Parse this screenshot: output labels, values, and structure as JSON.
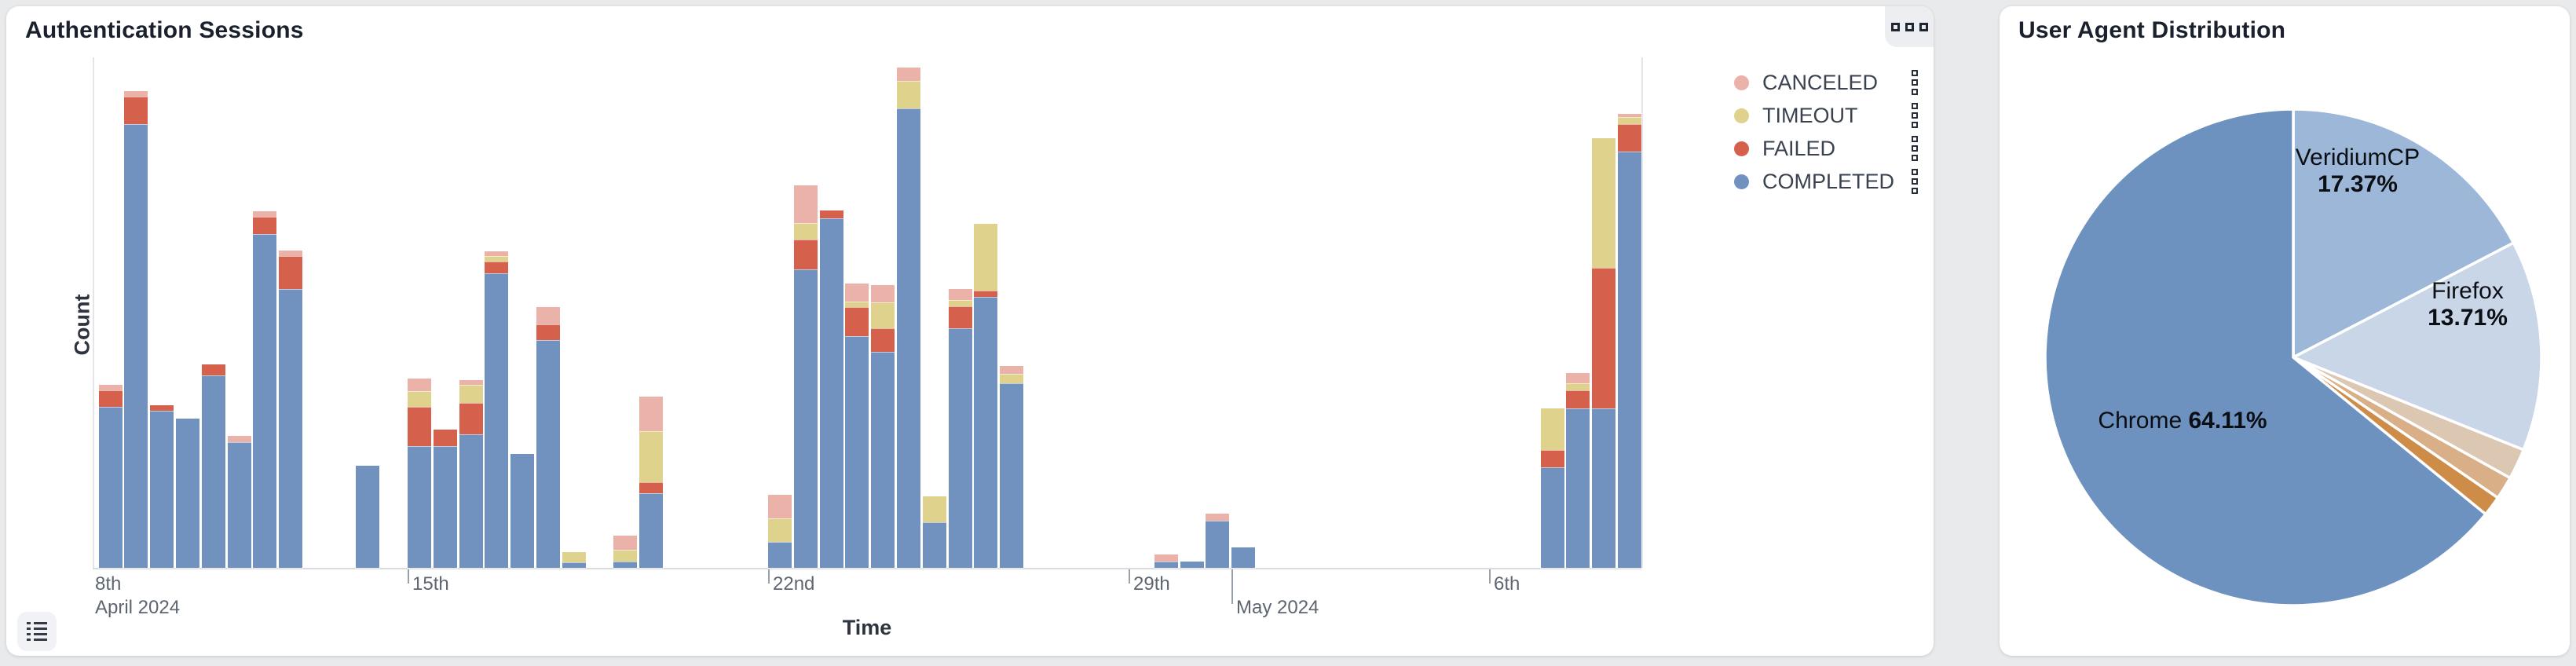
{
  "page": {
    "background": "#e9eaec"
  },
  "left_panel": {
    "title": "Authentication Sessions",
    "y_axis_label": "Count",
    "x_axis_label": "Time",
    "icons": {
      "top_right": "grid-squares-icon",
      "bottom_left": "list-icon"
    },
    "legend": [
      {
        "label": "CANCELED",
        "color": "#eab2a8",
        "key": "canceled"
      },
      {
        "label": "TIMEOUT",
        "color": "#ded28d",
        "key": "timeout"
      },
      {
        "label": "FAILED",
        "color": "#d5604c",
        "key": "failed"
      },
      {
        "label": "COMPLETED",
        "color": "#7191bf",
        "key": "completed"
      }
    ],
    "x_ticks": [
      {
        "x": 113,
        "line1": "8th",
        "line2": "April 2024",
        "mark": false,
        "long": false
      },
      {
        "x": 511,
        "line1": "15th",
        "line2": "",
        "mark": true,
        "long": false
      },
      {
        "x": 970,
        "line1": "22nd",
        "line2": "",
        "mark": true,
        "long": false
      },
      {
        "x": 1429,
        "line1": "29th",
        "line2": "",
        "mark": true,
        "long": false
      },
      {
        "x": 1560,
        "line1": "",
        "line2": "May 2024",
        "mark": true,
        "long": true
      },
      {
        "x": 1888,
        "line1": "6th",
        "line2": "",
        "mark": true,
        "long": false
      }
    ],
    "chart_data": {
      "type": "bar",
      "stacked": true,
      "title": "Authentication Sessions",
      "xlabel": "Time",
      "ylabel": "Count",
      "x_range": [
        "2024-04-08",
        "2024-05-09"
      ],
      "bin_hours": 12,
      "ylim": [
        0,
        130
      ],
      "grid": false,
      "legend_position": "right",
      "series_order": [
        "completed",
        "failed",
        "timeout",
        "canceled"
      ],
      "bars": [
        {
          "t": 2,
          "time": "Apr 9 AM",
          "completed": 41,
          "failed": 4.2,
          "timeout": 0,
          "canceled": 1.4
        },
        {
          "t": 3,
          "time": "Apr 9 PM",
          "completed": 113,
          "failed": 7,
          "timeout": 0,
          "canceled": 1.4
        },
        {
          "t": 4,
          "time": "Apr 10 AM",
          "completed": 40,
          "failed": 1.4,
          "timeout": 0,
          "canceled": 0
        },
        {
          "t": 5,
          "time": "Apr 10 PM",
          "completed": 38,
          "failed": 0,
          "timeout": 0,
          "canceled": 0
        },
        {
          "t": 6,
          "time": "Apr 11 AM",
          "completed": 49,
          "failed": 2.8,
          "timeout": 0,
          "canceled": 0
        },
        {
          "t": 7,
          "time": "Apr 11 PM",
          "completed": 32,
          "failed": 0,
          "timeout": 0,
          "canceled": 1.6
        },
        {
          "t": 8,
          "time": "Apr 12 AM",
          "completed": 85,
          "failed": 4.4,
          "timeout": 0,
          "canceled": 1.4
        },
        {
          "t": 9,
          "time": "Apr 12 PM",
          "completed": 71,
          "failed": 8.4,
          "timeout": 0,
          "canceled": 1.4
        },
        {
          "t": 12,
          "time": "Apr 14 AM",
          "completed": 26,
          "failed": 0,
          "timeout": 0,
          "canceled": 0
        },
        {
          "t": 14,
          "time": "Apr 15 AM",
          "completed": 31,
          "failed": 10,
          "timeout": 4,
          "canceled": 3.2
        },
        {
          "t": 15,
          "time": "Apr 15 PM",
          "completed": 31,
          "failed": 4.2,
          "timeout": 0,
          "canceled": 0
        },
        {
          "t": 16,
          "time": "Apr 16 AM",
          "completed": 34,
          "failed": 8,
          "timeout": 4.6,
          "canceled": 1.2
        },
        {
          "t": 17,
          "time": "Apr 16 PM",
          "completed": 75,
          "failed": 3,
          "timeout": 1.4,
          "canceled": 1.2
        },
        {
          "t": 18,
          "time": "Apr 17 AM",
          "completed": 29,
          "failed": 0,
          "timeout": 0,
          "canceled": 0
        },
        {
          "t": 19,
          "time": "Apr 17 PM",
          "completed": 58,
          "failed": 4,
          "timeout": 0,
          "canceled": 4.4
        },
        {
          "t": 20,
          "time": "Apr 18 AM",
          "completed": 1.4,
          "failed": 0,
          "timeout": 2.6,
          "canceled": 0
        },
        {
          "t": 22,
          "time": "Apr 19 AM",
          "completed": 1.6,
          "failed": 0,
          "timeout": 3,
          "canceled": 3.6
        },
        {
          "t": 23,
          "time": "Apr 19 PM",
          "completed": 19,
          "failed": 2.8,
          "timeout": 13,
          "canceled": 8.8
        },
        {
          "t": 28,
          "time": "Apr 22 AM",
          "completed": 6.6,
          "failed": 0,
          "timeout": 6,
          "canceled": 6
        },
        {
          "t": 29,
          "time": "Apr 22 PM",
          "completed": 76,
          "failed": 7.6,
          "timeout": 4.2,
          "canceled": 9.6
        },
        {
          "t": 30,
          "time": "Apr 23 AM",
          "completed": 89,
          "failed": 2,
          "timeout": 0,
          "canceled": 0
        },
        {
          "t": 31,
          "time": "Apr 23 PM",
          "completed": 59,
          "failed": 7.4,
          "timeout": 1.4,
          "canceled": 4.6
        },
        {
          "t": 32,
          "time": "Apr 24 AM",
          "completed": 55,
          "failed": 6,
          "timeout": 6.6,
          "canceled": 4.4
        },
        {
          "t": 33,
          "time": "Apr 24 PM",
          "completed": 117,
          "failed": 0,
          "timeout": 7,
          "canceled": 3.4
        },
        {
          "t": 34,
          "time": "Apr 25 AM",
          "completed": 11.6,
          "failed": 0,
          "timeout": 6.6,
          "canceled": 0
        },
        {
          "t": 35,
          "time": "Apr 25 PM",
          "completed": 61,
          "failed": 5.6,
          "timeout": 1.6,
          "canceled": 2.8
        },
        {
          "t": 36,
          "time": "Apr 26 AM",
          "completed": 69,
          "failed": 1.6,
          "timeout": 17,
          "canceled": 0
        },
        {
          "t": 37,
          "time": "Apr 26 PM",
          "completed": 47,
          "failed": 0,
          "timeout": 2.4,
          "canceled": 2
        },
        {
          "t": 43,
          "time": "Apr 29 PM",
          "completed": 1.6,
          "failed": 0,
          "timeout": 0,
          "canceled": 1.8
        },
        {
          "t": 44,
          "time": "Apr 30 AM",
          "completed": 1.6,
          "failed": 0,
          "timeout": 0,
          "canceled": 0
        },
        {
          "t": 45,
          "time": "Apr 30 PM",
          "completed": 12,
          "failed": 0,
          "timeout": 0,
          "canceled": 1.8
        },
        {
          "t": 46,
          "time": "May 1 AM",
          "completed": 5.2,
          "failed": 0,
          "timeout": 0,
          "canceled": 0
        },
        {
          "t": 58,
          "time": "May 7 AM",
          "completed": 25.6,
          "failed": 4.4,
          "timeout": 10.6,
          "canceled": 0
        },
        {
          "t": 59,
          "time": "May 7 PM",
          "completed": 40.6,
          "failed": 4.6,
          "timeout": 1.8,
          "canceled": 2.6
        },
        {
          "t": 60,
          "time": "May 8 AM",
          "completed": 40.6,
          "failed": 35.8,
          "timeout": 33,
          "canceled": 0
        },
        {
          "t": 61,
          "time": "May 8 PM",
          "completed": 106,
          "failed": 7,
          "timeout": 1.8,
          "canceled": 0.8
        }
      ],
      "colors": {
        "completed": "#7191bf",
        "failed": "#d5604c",
        "timeout": "#ded28d",
        "canceled": "#eab2a8"
      }
    }
  },
  "right_panel": {
    "title": "User Agent Distribution",
    "chart_data": {
      "type": "pie",
      "title": "User Agent Distribution",
      "slices": [
        {
          "name": "VeridiumCP",
          "pct": 17.37,
          "pct_text": "17.37%",
          "color": "#9cb7d8",
          "label": {
            "x": 456,
            "y": 210,
            "style": "stacked"
          }
        },
        {
          "name": "Firefox",
          "pct": 13.71,
          "pct_text": "13.71%",
          "color": "#c9d6e8",
          "label": {
            "x": 596,
            "y": 380,
            "style": "stacked"
          }
        },
        {
          "name": "",
          "pct": 2.0,
          "pct_text": "",
          "color": "#dcc7b2",
          "label": null
        },
        {
          "name": "",
          "pct": 1.5,
          "pct_text": "",
          "color": "#d9af88",
          "label": null
        },
        {
          "name": "",
          "pct": 1.31,
          "pct_text": "",
          "color": "#ce8c49",
          "label": null
        },
        {
          "name": "Chrome",
          "pct": 64.11,
          "pct_text": "64.11%",
          "color": "#6e92c0",
          "label": {
            "x": 233,
            "y": 528,
            "style": "inline"
          }
        }
      ]
    }
  }
}
